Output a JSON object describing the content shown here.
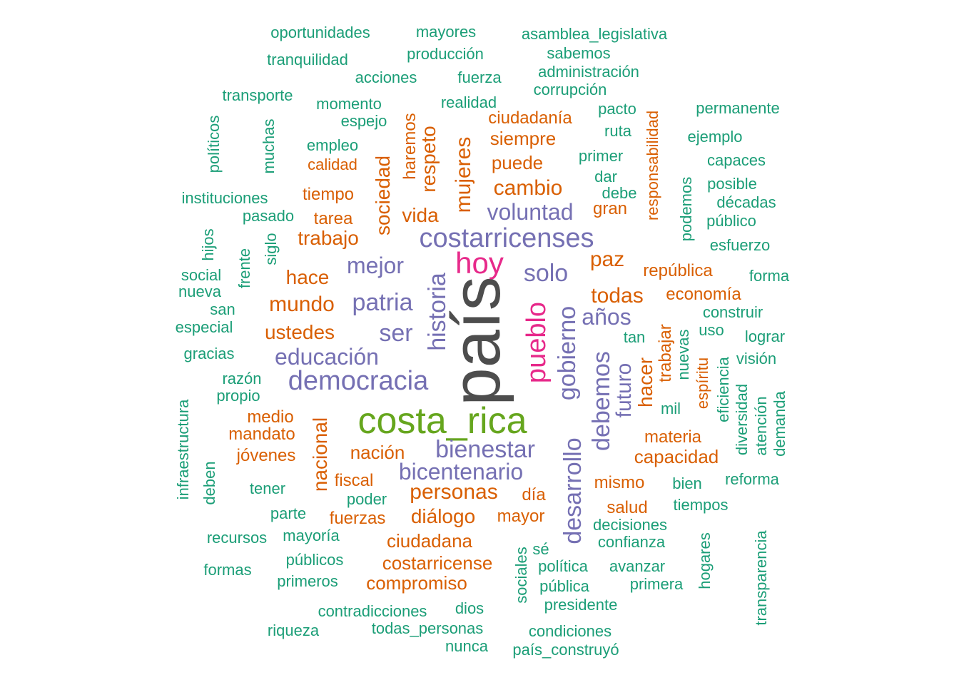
{
  "chart_data": {
    "type": "wordcloud",
    "palette": {
      "green": "#1b9e77",
      "orange": "#d95f02",
      "purple": "#7570b3",
      "pink": "#e7298a",
      "olive": "#66a61e",
      "dark": "#4d4d4d"
    },
    "words": [
      {
        "text": "país",
        "weight": 10,
        "color": "dark",
        "orientation": "vertical"
      },
      {
        "text": "costa_rica",
        "weight": 7,
        "color": "olive",
        "orientation": "horizontal"
      },
      {
        "text": "pueblo",
        "weight": 6,
        "color": "pink",
        "orientation": "vertical"
      },
      {
        "text": "hoy",
        "weight": 6,
        "color": "pink",
        "orientation": "horizontal"
      },
      {
        "text": "historia",
        "weight": 5,
        "color": "purple",
        "orientation": "vertical"
      },
      {
        "text": "costarricenses",
        "weight": 5,
        "color": "purple",
        "orientation": "horizontal"
      },
      {
        "text": "democracia",
        "weight": 5,
        "color": "purple",
        "orientation": "horizontal"
      },
      {
        "text": "gobierno",
        "weight": 5,
        "color": "purple",
        "orientation": "vertical"
      },
      {
        "text": "desarrollo",
        "weight": 5,
        "color": "purple",
        "orientation": "vertical"
      },
      {
        "text": "bienestar",
        "weight": 5,
        "color": "purple",
        "orientation": "horizontal"
      },
      {
        "text": "patria",
        "weight": 5,
        "color": "purple",
        "orientation": "horizontal"
      },
      {
        "text": "bicentenario",
        "weight": 4,
        "color": "purple",
        "orientation": "horizontal"
      },
      {
        "text": "debemos",
        "weight": 4,
        "color": "purple",
        "orientation": "vertical"
      },
      {
        "text": "educación",
        "weight": 4,
        "color": "purple",
        "orientation": "horizontal"
      },
      {
        "text": "solo",
        "weight": 4,
        "color": "purple",
        "orientation": "horizontal"
      },
      {
        "text": "ser",
        "weight": 4,
        "color": "purple",
        "orientation": "horizontal"
      },
      {
        "text": "mejor",
        "weight": 4,
        "color": "purple",
        "orientation": "horizontal"
      },
      {
        "text": "voluntad",
        "weight": 4,
        "color": "purple",
        "orientation": "horizontal"
      },
      {
        "text": "años",
        "weight": 4,
        "color": "purple",
        "orientation": "horizontal"
      },
      {
        "text": "futuro",
        "weight": 4,
        "color": "purple",
        "orientation": "vertical"
      },
      {
        "text": "mujeres",
        "weight": 4,
        "color": "orange",
        "orientation": "vertical"
      },
      {
        "text": "sociedad",
        "weight": 3,
        "color": "orange",
        "orientation": "vertical"
      },
      {
        "text": "nacional",
        "weight": 3,
        "color": "orange",
        "orientation": "vertical"
      },
      {
        "text": "personas",
        "weight": 3,
        "color": "orange",
        "orientation": "horizontal"
      },
      {
        "text": "diálogo",
        "weight": 3,
        "color": "orange",
        "orientation": "horizontal"
      },
      {
        "text": "todas",
        "weight": 3,
        "color": "orange",
        "orientation": "horizontal"
      },
      {
        "text": "hacer",
        "weight": 3,
        "color": "orange",
        "orientation": "vertical"
      },
      {
        "text": "paz",
        "weight": 3,
        "color": "orange",
        "orientation": "horizontal"
      },
      {
        "text": "cambio",
        "weight": 3,
        "color": "orange",
        "orientation": "horizontal"
      },
      {
        "text": "vida",
        "weight": 3,
        "color": "orange",
        "orientation": "horizontal"
      },
      {
        "text": "respeto",
        "weight": 3,
        "color": "orange",
        "orientation": "vertical"
      },
      {
        "text": "trabajo",
        "weight": 3,
        "color": "orange",
        "orientation": "horizontal"
      },
      {
        "text": "mundo",
        "weight": 3,
        "color": "orange",
        "orientation": "horizontal"
      },
      {
        "text": "ustedes",
        "weight": 3,
        "color": "orange",
        "orientation": "horizontal"
      },
      {
        "text": "hace",
        "weight": 3,
        "color": "orange",
        "orientation": "horizontal"
      },
      {
        "text": "nación",
        "weight": 3,
        "color": "orange",
        "orientation": "horizontal"
      },
      {
        "text": "ciudadana",
        "weight": 3,
        "color": "orange",
        "orientation": "horizontal"
      },
      {
        "text": "costarricense",
        "weight": 3,
        "color": "orange",
        "orientation": "horizontal"
      },
      {
        "text": "siempre",
        "weight": 3,
        "color": "orange",
        "orientation": "horizontal"
      },
      {
        "text": "capacidad",
        "weight": 3,
        "color": "orange",
        "orientation": "horizontal"
      },
      {
        "text": "haremos",
        "weight": 2,
        "color": "orange",
        "orientation": "vertical"
      },
      {
        "text": "trabajar",
        "weight": 2,
        "color": "orange",
        "orientation": "vertical"
      },
      {
        "text": "puede",
        "weight": 2,
        "color": "orange",
        "orientation": "horizontal"
      },
      {
        "text": "gran",
        "weight": 2,
        "color": "orange",
        "orientation": "horizontal"
      },
      {
        "text": "ciudadanía",
        "weight": 2,
        "color": "orange",
        "orientation": "horizontal"
      },
      {
        "text": "república",
        "weight": 2,
        "color": "orange",
        "orientation": "horizontal"
      },
      {
        "text": "economía",
        "weight": 2,
        "color": "orange",
        "orientation": "horizontal"
      },
      {
        "text": "responsabilidad",
        "weight": 2,
        "color": "orange",
        "orientation": "vertical"
      },
      {
        "text": "espíritu",
        "weight": 2,
        "color": "orange",
        "orientation": "vertical"
      },
      {
        "text": "tiempo",
        "weight": 2,
        "color": "orange",
        "orientation": "horizontal"
      },
      {
        "text": "calidad",
        "weight": 2,
        "color": "orange",
        "orientation": "horizontal"
      },
      {
        "text": "tarea",
        "weight": 2,
        "color": "orange",
        "orientation": "horizontal"
      },
      {
        "text": "medio",
        "weight": 2,
        "color": "orange",
        "orientation": "horizontal"
      },
      {
        "text": "mandato",
        "weight": 2,
        "color": "orange",
        "orientation": "horizontal"
      },
      {
        "text": "jóvenes",
        "weight": 2,
        "color": "orange",
        "orientation": "horizontal"
      },
      {
        "text": "fiscal",
        "weight": 2,
        "color": "orange",
        "orientation": "horizontal"
      },
      {
        "text": "fuerzas",
        "weight": 2,
        "color": "orange",
        "orientation": "horizontal"
      },
      {
        "text": "día",
        "weight": 2,
        "color": "orange",
        "orientation": "horizontal"
      },
      {
        "text": "mayor",
        "weight": 2,
        "color": "orange",
        "orientation": "horizontal"
      },
      {
        "text": "mismo",
        "weight": 2,
        "color": "orange",
        "orientation": "horizontal"
      },
      {
        "text": "salud",
        "weight": 2,
        "color": "orange",
        "orientation": "horizontal"
      },
      {
        "text": "materia",
        "weight": 2,
        "color": "orange",
        "orientation": "horizontal"
      },
      {
        "text": "compromiso",
        "weight": 2,
        "color": "orange",
        "orientation": "horizontal"
      },
      {
        "text": "oportunidades",
        "weight": 1,
        "color": "green",
        "orientation": "horizontal"
      },
      {
        "text": "mayores",
        "weight": 1,
        "color": "green",
        "orientation": "horizontal"
      },
      {
        "text": "asamblea_legislativa",
        "weight": 1,
        "color": "green",
        "orientation": "horizontal"
      },
      {
        "text": "tranquilidad",
        "weight": 1,
        "color": "green",
        "orientation": "horizontal"
      },
      {
        "text": "producción",
        "weight": 1,
        "color": "green",
        "orientation": "horizontal"
      },
      {
        "text": "sabemos",
        "weight": 1,
        "color": "green",
        "orientation": "horizontal"
      },
      {
        "text": "acciones",
        "weight": 1,
        "color": "green",
        "orientation": "horizontal"
      },
      {
        "text": "fuerza",
        "weight": 1,
        "color": "green",
        "orientation": "horizontal"
      },
      {
        "text": "administración",
        "weight": 1,
        "color": "green",
        "orientation": "horizontal"
      },
      {
        "text": "transporte",
        "weight": 1,
        "color": "green",
        "orientation": "horizontal"
      },
      {
        "text": "momento",
        "weight": 1,
        "color": "green",
        "orientation": "horizontal"
      },
      {
        "text": "realidad",
        "weight": 1,
        "color": "green",
        "orientation": "horizontal"
      },
      {
        "text": "corrupción",
        "weight": 1,
        "color": "green",
        "orientation": "horizontal"
      },
      {
        "text": "pacto",
        "weight": 1,
        "color": "green",
        "orientation": "horizontal"
      },
      {
        "text": "permanente",
        "weight": 1,
        "color": "green",
        "orientation": "horizontal"
      },
      {
        "text": "espejo",
        "weight": 1,
        "color": "green",
        "orientation": "horizontal"
      },
      {
        "text": "ruta",
        "weight": 1,
        "color": "green",
        "orientation": "horizontal"
      },
      {
        "text": "ejemplo",
        "weight": 1,
        "color": "green",
        "orientation": "horizontal"
      },
      {
        "text": "políticos",
        "weight": 1,
        "color": "green",
        "orientation": "vertical"
      },
      {
        "text": "muchas",
        "weight": 1,
        "color": "green",
        "orientation": "vertical"
      },
      {
        "text": "empleo",
        "weight": 1,
        "color": "green",
        "orientation": "horizontal"
      },
      {
        "text": "primer",
        "weight": 1,
        "color": "green",
        "orientation": "horizontal"
      },
      {
        "text": "capaces",
        "weight": 1,
        "color": "green",
        "orientation": "horizontal"
      },
      {
        "text": "dar",
        "weight": 1,
        "color": "green",
        "orientation": "horizontal"
      },
      {
        "text": "posible",
        "weight": 1,
        "color": "green",
        "orientation": "horizontal"
      },
      {
        "text": "podemos",
        "weight": 1,
        "color": "green",
        "orientation": "vertical"
      },
      {
        "text": "instituciones",
        "weight": 1,
        "color": "green",
        "orientation": "horizontal"
      },
      {
        "text": "debe",
        "weight": 1,
        "color": "green",
        "orientation": "horizontal"
      },
      {
        "text": "décadas",
        "weight": 1,
        "color": "green",
        "orientation": "horizontal"
      },
      {
        "text": "pasado",
        "weight": 1,
        "color": "green",
        "orientation": "horizontal"
      },
      {
        "text": "público",
        "weight": 1,
        "color": "green",
        "orientation": "horizontal"
      },
      {
        "text": "hijos",
        "weight": 1,
        "color": "green",
        "orientation": "vertical"
      },
      {
        "text": "siglo",
        "weight": 1,
        "color": "green",
        "orientation": "vertical"
      },
      {
        "text": "esfuerzo",
        "weight": 1,
        "color": "green",
        "orientation": "horizontal"
      },
      {
        "text": "frente",
        "weight": 1,
        "color": "green",
        "orientation": "vertical"
      },
      {
        "text": "social",
        "weight": 1,
        "color": "green",
        "orientation": "horizontal"
      },
      {
        "text": "forma",
        "weight": 1,
        "color": "green",
        "orientation": "horizontal"
      },
      {
        "text": "nueva",
        "weight": 1,
        "color": "green",
        "orientation": "horizontal"
      },
      {
        "text": "san",
        "weight": 1,
        "color": "green",
        "orientation": "horizontal"
      },
      {
        "text": "construir",
        "weight": 1,
        "color": "green",
        "orientation": "horizontal"
      },
      {
        "text": "especial",
        "weight": 1,
        "color": "green",
        "orientation": "horizontal"
      },
      {
        "text": "uso",
        "weight": 1,
        "color": "green",
        "orientation": "horizontal"
      },
      {
        "text": "tan",
        "weight": 1,
        "color": "green",
        "orientation": "horizontal"
      },
      {
        "text": "lograr",
        "weight": 1,
        "color": "green",
        "orientation": "horizontal"
      },
      {
        "text": "nuevas",
        "weight": 1,
        "color": "green",
        "orientation": "vertical"
      },
      {
        "text": "gracias",
        "weight": 1,
        "color": "green",
        "orientation": "horizontal"
      },
      {
        "text": "visión",
        "weight": 1,
        "color": "green",
        "orientation": "horizontal"
      },
      {
        "text": "eficiencia",
        "weight": 1,
        "color": "green",
        "orientation": "vertical"
      },
      {
        "text": "razón",
        "weight": 1,
        "color": "green",
        "orientation": "horizontal"
      },
      {
        "text": "diversidad",
        "weight": 1,
        "color": "green",
        "orientation": "vertical"
      },
      {
        "text": "propio",
        "weight": 1,
        "color": "green",
        "orientation": "horizontal"
      },
      {
        "text": "atención",
        "weight": 1,
        "color": "green",
        "orientation": "vertical"
      },
      {
        "text": "demanda",
        "weight": 1,
        "color": "green",
        "orientation": "vertical"
      },
      {
        "text": "infraestructura",
        "weight": 1,
        "color": "green",
        "orientation": "vertical"
      },
      {
        "text": "mil",
        "weight": 1,
        "color": "green",
        "orientation": "horizontal"
      },
      {
        "text": "deben",
        "weight": 1,
        "color": "green",
        "orientation": "vertical"
      },
      {
        "text": "tener",
        "weight": 1,
        "color": "green",
        "orientation": "horizontal"
      },
      {
        "text": "poder",
        "weight": 1,
        "color": "green",
        "orientation": "horizontal"
      },
      {
        "text": "bien",
        "weight": 1,
        "color": "green",
        "orientation": "horizontal"
      },
      {
        "text": "reforma",
        "weight": 1,
        "color": "green",
        "orientation": "horizontal"
      },
      {
        "text": "parte",
        "weight": 1,
        "color": "green",
        "orientation": "horizontal"
      },
      {
        "text": "tiempos",
        "weight": 1,
        "color": "green",
        "orientation": "horizontal"
      },
      {
        "text": "recursos",
        "weight": 1,
        "color": "green",
        "orientation": "horizontal"
      },
      {
        "text": "mayoría",
        "weight": 1,
        "color": "green",
        "orientation": "horizontal"
      },
      {
        "text": "decisiones",
        "weight": 1,
        "color": "green",
        "orientation": "horizontal"
      },
      {
        "text": "hogares",
        "weight": 1,
        "color": "green",
        "orientation": "vertical"
      },
      {
        "text": "transparencia",
        "weight": 1,
        "color": "green",
        "orientation": "vertical"
      },
      {
        "text": "confianza",
        "weight": 1,
        "color": "green",
        "orientation": "horizontal"
      },
      {
        "text": "públicos",
        "weight": 1,
        "color": "green",
        "orientation": "horizontal"
      },
      {
        "text": "sé",
        "weight": 1,
        "color": "green",
        "orientation": "horizontal"
      },
      {
        "text": "sociales",
        "weight": 1,
        "color": "green",
        "orientation": "vertical"
      },
      {
        "text": "formas",
        "weight": 1,
        "color": "green",
        "orientation": "horizontal"
      },
      {
        "text": "política",
        "weight": 1,
        "color": "green",
        "orientation": "horizontal"
      },
      {
        "text": "avanzar",
        "weight": 1,
        "color": "green",
        "orientation": "horizontal"
      },
      {
        "text": "primeros",
        "weight": 1,
        "color": "green",
        "orientation": "horizontal"
      },
      {
        "text": "primera",
        "weight": 1,
        "color": "green",
        "orientation": "horizontal"
      },
      {
        "text": "pública",
        "weight": 1,
        "color": "green",
        "orientation": "horizontal"
      },
      {
        "text": "presidente",
        "weight": 1,
        "color": "green",
        "orientation": "horizontal"
      },
      {
        "text": "contradicciones",
        "weight": 1,
        "color": "green",
        "orientation": "horizontal"
      },
      {
        "text": "dios",
        "weight": 1,
        "color": "green",
        "orientation": "horizontal"
      },
      {
        "text": "riqueza",
        "weight": 1,
        "color": "green",
        "orientation": "horizontal"
      },
      {
        "text": "todas_personas",
        "weight": 1,
        "color": "green",
        "orientation": "horizontal"
      },
      {
        "text": "condiciones",
        "weight": 1,
        "color": "green",
        "orientation": "horizontal"
      },
      {
        "text": "nunca",
        "weight": 1,
        "color": "green",
        "orientation": "horizontal"
      },
      {
        "text": "país_construyó",
        "weight": 1,
        "color": "green",
        "orientation": "horizontal"
      }
    ]
  }
}
